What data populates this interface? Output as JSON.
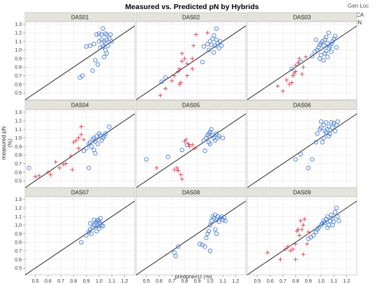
{
  "chart_data": {
    "type": "scatter",
    "title": "Measured vs. Predicted pN by Hybrids",
    "xlabel": "predpNR1f (%)",
    "ylabel": "measured pN (%)",
    "xlim": [
      0.42,
      1.28
    ],
    "ylim": [
      0.42,
      1.33
    ],
    "x_ticks": [
      "0.5",
      "0.6",
      "0.7",
      "0.8",
      "0.9",
      "1.0",
      "1.1",
      "1.2"
    ],
    "y_ticks": [
      "0.5",
      "0.6",
      "0.7",
      "0.8",
      "0.9",
      "1.0",
      "1.1",
      "1.2",
      "1.3"
    ],
    "legend": {
      "title": "Gen Loc",
      "entries": [
        {
          "name": "CA",
          "marker": "circle",
          "color": "#4a7fd8"
        },
        {
          "name": "IN",
          "marker": "plus",
          "color": "#e03a4a"
        }
      ],
      "placement": "top-right"
    },
    "reference_line": "y = x",
    "panels": [
      {
        "label": "DAS01",
        "CA": [
          [
            0.85,
            0.68
          ],
          [
            0.87,
            0.7
          ],
          [
            0.95,
            0.76
          ],
          [
            0.9,
            1.04
          ],
          [
            0.93,
            1.05
          ],
          [
            0.96,
            1.07
          ],
          [
            0.98,
            1.18
          ],
          [
            1.0,
            1.19
          ],
          [
            1.02,
            1.18
          ],
          [
            1.03,
            1.25
          ],
          [
            1.05,
            1.19
          ],
          [
            1.06,
            1.18
          ],
          [
            1.0,
            1.1
          ],
          [
            1.02,
            1.12
          ],
          [
            1.04,
            1.1
          ],
          [
            1.05,
            1.08
          ],
          [
            1.06,
            1.12
          ],
          [
            1.07,
            1.05
          ],
          [
            1.08,
            1.13
          ],
          [
            1.03,
            1.04
          ],
          [
            1.05,
            1.0
          ],
          [
            1.06,
            0.96
          ],
          [
            1.04,
            0.92
          ],
          [
            1.09,
            1.18
          ],
          [
            0.97,
            0.88
          ],
          [
            0.99,
            0.83
          ],
          [
            1.01,
            1.03
          ],
          [
            1.1,
            1.1
          ]
        ],
        "IN": []
      },
      {
        "label": "DAS02",
        "CA": [
          [
            0.62,
            0.63
          ],
          [
            0.65,
            0.68
          ],
          [
            0.95,
            1.04
          ],
          [
            0.98,
            1.07
          ],
          [
            1.0,
            1.1
          ],
          [
            1.02,
            1.13
          ],
          [
            1.03,
            1.17
          ],
          [
            1.05,
            1.12
          ],
          [
            1.06,
            1.08
          ],
          [
            1.04,
            1.05
          ],
          [
            1.07,
            1.02
          ],
          [
            1.09,
            1.05
          ],
          [
            1.01,
            1.06
          ],
          [
            0.99,
            1.0
          ],
          [
            1.03,
            0.97
          ],
          [
            0.94,
            0.86
          ],
          [
            1.08,
            1.1
          ],
          [
            1.05,
            1.25
          ]
        ],
        "IN": [
          [
            0.61,
            0.47
          ],
          [
            0.65,
            0.55
          ],
          [
            0.7,
            0.64
          ],
          [
            0.72,
            0.7
          ],
          [
            0.76,
            0.6
          ],
          [
            0.77,
            0.62
          ],
          [
            0.75,
            0.75
          ],
          [
            0.76,
            0.78
          ],
          [
            0.78,
            0.87
          ],
          [
            0.8,
            0.9
          ],
          [
            0.82,
            0.84
          ],
          [
            0.82,
            0.7
          ],
          [
            0.86,
            0.78
          ],
          [
            0.86,
            0.9
          ],
          [
            0.87,
            1.05
          ],
          [
            0.89,
            1.18
          ],
          [
            0.98,
            1.2
          ],
          [
            0.78,
            0.96
          ]
        ]
      },
      {
        "label": "DAS03",
        "CA": [
          [
            0.77,
            0.78
          ],
          [
            0.84,
            0.86
          ],
          [
            0.93,
            0.93
          ],
          [
            0.95,
            0.98
          ],
          [
            0.97,
            1.0
          ],
          [
            0.98,
            1.03
          ],
          [
            0.99,
            1.06
          ],
          [
            1.0,
            1.08
          ],
          [
            1.01,
            1.1
          ],
          [
            1.02,
            1.05
          ],
          [
            1.03,
            1.12
          ],
          [
            1.04,
            1.15
          ],
          [
            1.05,
            1.08
          ],
          [
            1.06,
            1.02
          ],
          [
            1.07,
            1.04
          ],
          [
            1.08,
            1.07
          ],
          [
            1.09,
            1.1
          ],
          [
            1.1,
            1.13
          ],
          [
            1.11,
            1.16
          ],
          [
            1.03,
            0.96
          ],
          [
            1.05,
            0.92
          ],
          [
            0.99,
            0.9
          ],
          [
            1.02,
            0.88
          ],
          [
            1.08,
            0.98
          ],
          [
            1.06,
            1.2
          ],
          [
            0.96,
            1.12
          ],
          [
            1.12,
            1.03
          ],
          [
            1.0,
            0.94
          ],
          [
            1.04,
            0.99
          ]
        ],
        "IN": [
          [
            0.66,
            0.58
          ],
          [
            0.7,
            0.52
          ],
          [
            0.73,
            0.65
          ],
          [
            0.75,
            0.6
          ],
          [
            0.77,
            0.62
          ],
          [
            0.78,
            0.7
          ],
          [
            0.8,
            0.75
          ],
          [
            0.8,
            0.82
          ],
          [
            0.82,
            0.85
          ],
          [
            0.85,
            0.72
          ],
          [
            0.83,
            0.9
          ],
          [
            0.88,
            0.92
          ],
          [
            0.86,
            0.8
          ],
          [
            0.79,
            0.73
          ]
        ]
      },
      {
        "label": "DAS04",
        "CA": [
          [
            0.45,
            0.65
          ],
          [
            0.88,
            0.85
          ],
          [
            0.9,
            0.88
          ],
          [
            0.92,
            0.93
          ],
          [
            0.93,
            0.95
          ],
          [
            0.95,
            0.98
          ],
          [
            0.96,
            1.0
          ],
          [
            0.97,
            0.96
          ],
          [
            0.98,
            1.02
          ],
          [
            1.0,
            1.05
          ],
          [
            1.02,
            0.97
          ],
          [
            1.03,
            1.0
          ],
          [
            1.05,
            1.05
          ],
          [
            0.94,
            0.9
          ],
          [
            0.96,
            0.86
          ],
          [
            1.01,
            1.03
          ],
          [
            1.04,
            1.02
          ],
          [
            0.99,
            0.93
          ],
          [
            1.08,
            1.13
          ],
          [
            0.92,
            0.65
          ],
          [
            0.97,
            0.82
          ]
        ],
        "IN": [
          [
            0.5,
            0.55
          ],
          [
            0.53,
            0.56
          ],
          [
            0.6,
            0.6
          ],
          [
            0.62,
            0.57
          ],
          [
            0.66,
            0.72
          ],
          [
            0.69,
            0.65
          ],
          [
            0.72,
            0.69
          ],
          [
            0.74,
            0.7
          ],
          [
            0.78,
            0.79
          ],
          [
            0.8,
            0.95
          ],
          [
            0.82,
            0.97
          ],
          [
            0.84,
            1.0
          ],
          [
            0.86,
            1.04
          ],
          [
            0.84,
            0.88
          ],
          [
            0.86,
            1.13
          ],
          [
            0.79,
            0.63
          ],
          [
            0.88,
            0.98
          ]
        ]
      },
      {
        "label": "DAS05",
        "CA": [
          [
            0.5,
            0.75
          ],
          [
            0.67,
            0.78
          ],
          [
            0.82,
            0.92
          ],
          [
            0.95,
            0.97
          ],
          [
            0.97,
            1.0
          ],
          [
            0.98,
            1.03
          ],
          [
            0.99,
            1.05
          ],
          [
            1.0,
            1.07
          ],
          [
            1.01,
            1.1
          ],
          [
            1.02,
            1.03
          ],
          [
            1.03,
            1.0
          ],
          [
            1.04,
            0.97
          ],
          [
            1.06,
            1.0
          ],
          [
            1.07,
            1.02
          ],
          [
            0.99,
            0.95
          ],
          [
            1.0,
            0.93
          ],
          [
            0.96,
            0.85
          ],
          [
            0.78,
            0.86
          ],
          [
            1.05,
            1.05
          ],
          [
            1.1,
            1.0
          ]
        ],
        "IN": [
          [
            0.72,
            0.63
          ],
          [
            0.74,
            0.65
          ],
          [
            0.75,
            0.62
          ],
          [
            0.77,
            0.57
          ],
          [
            0.78,
            0.52
          ],
          [
            0.8,
            0.96
          ],
          [
            0.81,
            0.98
          ],
          [
            0.83,
            0.93
          ],
          [
            0.84,
            0.9
          ],
          [
            0.86,
            0.92
          ],
          [
            0.88,
            0.88
          ],
          [
            0.58,
            0.65
          ]
        ]
      },
      {
        "label": "DAS06",
        "CA": [
          [
            0.8,
            0.75
          ],
          [
            0.84,
            0.81
          ],
          [
            0.9,
            0.65
          ],
          [
            0.93,
            0.75
          ],
          [
            0.96,
            0.95
          ],
          [
            0.97,
            1.05
          ],
          [
            0.99,
            1.1
          ],
          [
            1.0,
            1.12
          ],
          [
            1.02,
            1.15
          ],
          [
            1.03,
            1.08
          ],
          [
            1.04,
            1.06
          ],
          [
            1.05,
            1.1
          ],
          [
            1.06,
            1.13
          ],
          [
            1.07,
            1.05
          ],
          [
            1.08,
            1.18
          ],
          [
            1.09,
            1.12
          ],
          [
            1.1,
            1.17
          ],
          [
            1.11,
            1.08
          ],
          [
            1.12,
            1.15
          ],
          [
            1.13,
            1.19
          ],
          [
            1.0,
            1.19
          ],
          [
            1.02,
            1.0
          ],
          [
            1.04,
            1.18
          ],
          [
            1.01,
            0.95
          ],
          [
            1.06,
            1.02
          ]
        ],
        "IN": []
      },
      {
        "label": "DAS07",
        "CA": [
          [
            0.86,
            0.8
          ],
          [
            0.9,
            0.88
          ],
          [
            0.92,
            0.92
          ],
          [
            0.93,
            0.95
          ],
          [
            0.95,
            0.97
          ],
          [
            0.96,
            1.0
          ],
          [
            0.97,
            1.02
          ],
          [
            0.98,
            1.04
          ],
          [
            0.99,
            1.06
          ],
          [
            1.0,
            1.05
          ],
          [
            1.01,
            1.02
          ],
          [
            1.02,
            1.0
          ],
          [
            1.0,
            0.96
          ],
          [
            0.98,
            0.93
          ],
          [
            0.94,
            0.9
          ],
          [
            0.96,
            1.06
          ],
          [
            1.01,
            1.08
          ],
          [
            0.93,
            1.02
          ],
          [
            1.03,
            0.99
          ],
          [
            0.99,
            0.99
          ]
        ],
        "IN": []
      },
      {
        "label": "DAS08",
        "CA": [
          [
            0.72,
            0.68
          ],
          [
            0.73,
            0.64
          ],
          [
            0.75,
            0.75
          ],
          [
            0.92,
            0.78
          ],
          [
            0.94,
            0.77
          ],
          [
            0.96,
            0.75
          ],
          [
            0.97,
            0.85
          ],
          [
            0.98,
            0.9
          ],
          [
            0.99,
            0.93
          ],
          [
            1.0,
            1.0
          ],
          [
            1.01,
            1.05
          ],
          [
            1.02,
            1.1
          ],
          [
            1.03,
            1.08
          ],
          [
            1.04,
            1.12
          ],
          [
            1.05,
            1.06
          ],
          [
            1.06,
            1.1
          ],
          [
            1.07,
            1.04
          ],
          [
            1.08,
            1.08
          ],
          [
            1.09,
            1.1
          ],
          [
            1.1,
            1.06
          ],
          [
            1.11,
            1.09
          ],
          [
            1.04,
            0.95
          ],
          [
            1.05,
            0.9
          ],
          [
            1.0,
            0.7
          ],
          [
            1.12,
            1.05
          ]
        ],
        "IN": []
      },
      {
        "label": "DAS09",
        "CA": [
          [
            0.9,
            0.84
          ],
          [
            0.92,
            0.86
          ],
          [
            0.94,
            0.88
          ],
          [
            0.96,
            0.92
          ],
          [
            0.97,
            0.95
          ],
          [
            0.98,
            0.97
          ],
          [
            1.0,
            1.0
          ],
          [
            1.01,
            1.02
          ],
          [
            1.02,
            1.05
          ],
          [
            1.03,
            1.03
          ],
          [
            1.04,
            1.07
          ],
          [
            1.05,
            1.1
          ],
          [
            1.06,
            1.0
          ],
          [
            1.07,
            1.05
          ],
          [
            1.08,
            1.12
          ],
          [
            1.09,
            1.08
          ],
          [
            1.1,
            1.04
          ],
          [
            1.11,
            1.15
          ],
          [
            1.12,
            1.2
          ],
          [
            1.13,
            1.1
          ],
          [
            1.09,
            1.0
          ],
          [
            1.05,
            0.97
          ],
          [
            1.14,
            1.05
          ]
        ],
        "IN": [
          [
            0.58,
            0.68
          ],
          [
            0.68,
            0.6
          ],
          [
            0.72,
            0.72
          ],
          [
            0.74,
            0.75
          ],
          [
            0.76,
            0.7
          ],
          [
            0.78,
            0.72
          ],
          [
            0.8,
            0.78
          ],
          [
            0.81,
            0.93
          ],
          [
            0.82,
            0.95
          ],
          [
            0.83,
            0.88
          ],
          [
            0.85,
            0.95
          ],
          [
            0.86,
            0.66
          ],
          [
            0.86,
            1.0
          ],
          [
            0.84,
            1.05
          ],
          [
            0.87,
            1.07
          ],
          [
            0.89,
            0.78
          ],
          [
            0.9,
            0.92
          ],
          [
            0.8,
            0.6
          ]
        ]
      }
    ]
  }
}
